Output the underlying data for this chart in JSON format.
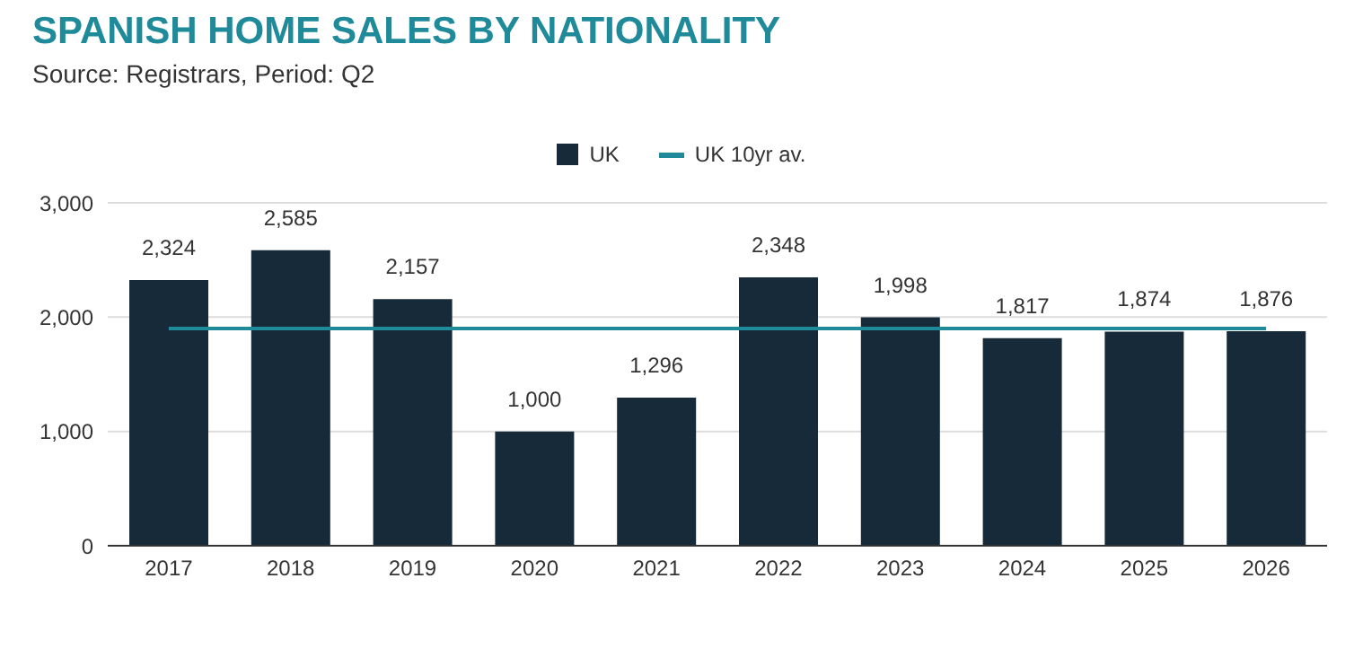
{
  "chart_data": {
    "type": "bar",
    "title": "SPANISH HOME SALES BY NATIONALITY",
    "subtitle": "Source: Registrars, Period: Q2",
    "categories": [
      "2017",
      "2018",
      "2019",
      "2020",
      "2021",
      "2022",
      "2023",
      "2024",
      "2025",
      "2026"
    ],
    "series": [
      {
        "name": "UK",
        "color": "#172a3a",
        "values": [
          2324,
          2585,
          2157,
          1000,
          1296,
          2348,
          1998,
          1817,
          1874,
          1876
        ],
        "value_labels": [
          "2,324",
          "2,585",
          "2,157",
          "1,000",
          "1,296",
          "2,348",
          "1,998",
          "1,817",
          "1,874",
          "1,876"
        ]
      },
      {
        "name": "UK 10yr av.",
        "type": "line",
        "color": "#1f8a99",
        "values": [
          1900,
          1900,
          1900,
          1900,
          1900,
          1900,
          1900,
          1900,
          1900,
          1900
        ]
      }
    ],
    "ylim": [
      0,
      3000
    ],
    "yticks": [
      {
        "value": 0,
        "label": "0"
      },
      {
        "value": 1000,
        "label": "1,000"
      },
      {
        "value": 2000,
        "label": "2,000"
      },
      {
        "value": 3000,
        "label": "3,000"
      }
    ],
    "grid": "y",
    "legend": "top",
    "marker": "none",
    "line_style": "solid"
  }
}
